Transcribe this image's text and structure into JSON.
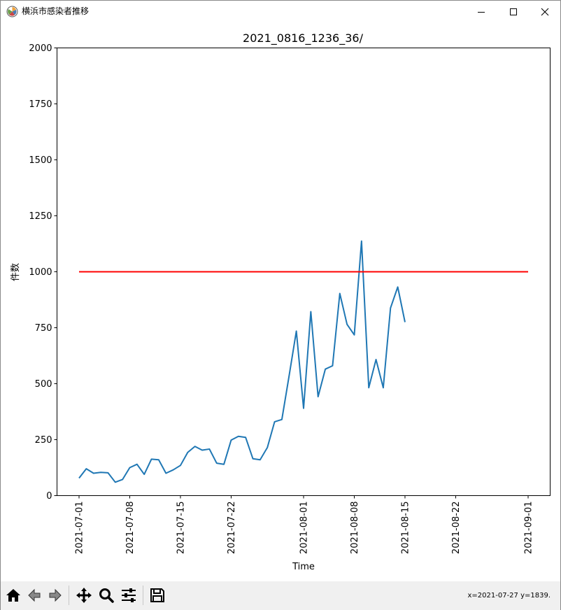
{
  "window": {
    "title": "横浜市感染者推移",
    "icon": "matplotlib-logo-icon",
    "controls": [
      "minimize-icon",
      "maximize-icon",
      "close-icon"
    ]
  },
  "chart_data": {
    "type": "line",
    "title": "2021_0816_1236_36/",
    "xlabel": "Time",
    "ylabel": "件数",
    "x_ticks": [
      "2021-07-01",
      "2021-07-08",
      "2021-07-15",
      "2021-07-22",
      "2021-08-01",
      "2021-08-08",
      "2021-08-15",
      "2021-08-22",
      "2021-09-01"
    ],
    "y_ticks": [
      0,
      250,
      500,
      750,
      1000,
      1250,
      1500,
      1750,
      2000
    ],
    "xlim": [
      "2021-07-01",
      "2021-09-01"
    ],
    "ylim": [
      0,
      2000
    ],
    "grid": false,
    "series": [
      {
        "color": "#1f77b4",
        "x": [
          "2021-07-01",
          "2021-07-02",
          "2021-07-03",
          "2021-07-04",
          "2021-07-05",
          "2021-07-06",
          "2021-07-07",
          "2021-07-08",
          "2021-07-09",
          "2021-07-10",
          "2021-07-11",
          "2021-07-12",
          "2021-07-13",
          "2021-07-14",
          "2021-07-15",
          "2021-07-16",
          "2021-07-17",
          "2021-07-18",
          "2021-07-19",
          "2021-07-20",
          "2021-07-21",
          "2021-07-22",
          "2021-07-23",
          "2021-07-24",
          "2021-07-25",
          "2021-07-26",
          "2021-07-27",
          "2021-07-28",
          "2021-07-29",
          "2021-07-30",
          "2021-07-31",
          "2021-08-01",
          "2021-08-02",
          "2021-08-03",
          "2021-08-04",
          "2021-08-05",
          "2021-08-06",
          "2021-08-07",
          "2021-08-08",
          "2021-08-09",
          "2021-08-10",
          "2021-08-11",
          "2021-08-12",
          "2021-08-13",
          "2021-08-14",
          "2021-08-15"
        ],
        "values": [
          78,
          120,
          100,
          104,
          102,
          60,
          72,
          125,
          140,
          95,
          163,
          160,
          100,
          115,
          135,
          193,
          220,
          203,
          208,
          145,
          140,
          248,
          265,
          260,
          165,
          160,
          215,
          330,
          340,
          535,
          735,
          390,
          822,
          442,
          565,
          580,
          903,
          765,
          718,
          1137,
          482,
          608,
          482,
          838,
          932,
          775
        ]
      },
      {
        "color": "#ff0000",
        "x": [
          "2021-07-01",
          "2021-09-01"
        ],
        "values": [
          1000,
          1000
        ]
      }
    ]
  },
  "toolbar": {
    "buttons": [
      {
        "icon": "home-icon"
      },
      {
        "icon": "back-arrow-icon"
      },
      {
        "icon": "forward-arrow-icon"
      },
      {
        "icon": "pan-move-icon"
      },
      {
        "icon": "zoom-magnifier-icon"
      },
      {
        "icon": "configure-subplots-icon"
      },
      {
        "icon": "save-floppy-icon"
      }
    ],
    "coordinates": "x=2021-07-27 y=1839."
  }
}
